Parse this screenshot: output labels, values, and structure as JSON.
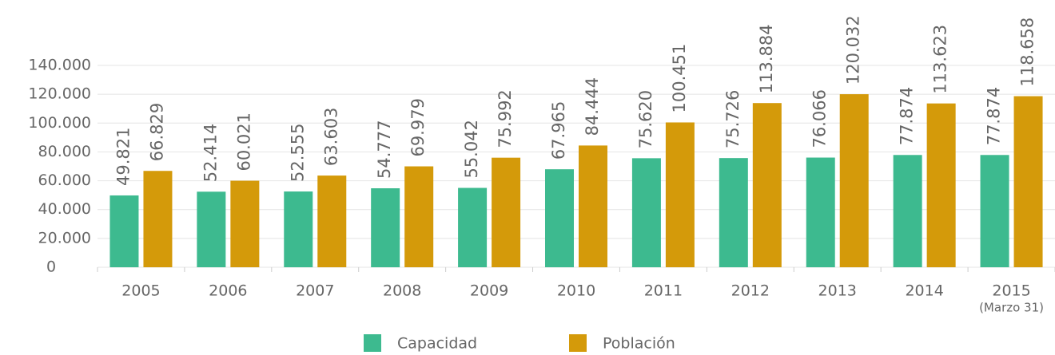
{
  "chart_data": {
    "type": "bar",
    "categories": [
      "2005",
      "2006",
      "2007",
      "2008",
      "2009",
      "2010",
      "2011",
      "2012",
      "2013",
      "2014",
      "2015"
    ],
    "annotations": [
      {
        "category": 10,
        "text": "(Marzo 31)"
      }
    ],
    "series": [
      {
        "name": "Capacidad",
        "color": "#3dba8f",
        "values": [
          49821,
          52414,
          52555,
          54777,
          55042,
          67965,
          75620,
          75726,
          76066,
          77874,
          77874
        ],
        "value_labels": [
          "49.821",
          "52.414",
          "52.555",
          "54.777",
          "55.042",
          "67.965",
          "75.620",
          "75.726",
          "76.066",
          "77.874",
          "77.874"
        ]
      },
      {
        "name": "Población",
        "color": "#d49a0a",
        "values": [
          66829,
          60021,
          63603,
          69979,
          75992,
          84444,
          100451,
          113884,
          120032,
          113623,
          118658
        ],
        "value_labels": [
          "66.829",
          "60.021",
          "63.603",
          "69.979",
          "75.992",
          "84.444",
          "100.451",
          "113.884",
          "120.032",
          "113.623",
          "118.658"
        ]
      }
    ],
    "ylim": [
      0,
      140000
    ],
    "yticks": [
      0,
      {
        "value": 20000,
        "label": "20.000"
      },
      {
        "value": 40000,
        "label": "40.000"
      },
      {
        "value": 60000,
        "label": "60.000"
      },
      {
        "value": 80000,
        "label": "80.000"
      },
      {
        "value": 100000,
        "label": "100.000"
      },
      {
        "value": 120000,
        "label": "120.000"
      },
      {
        "value": 140000,
        "label": "140.000"
      }
    ],
    "grid": true,
    "legend": "bottom"
  }
}
